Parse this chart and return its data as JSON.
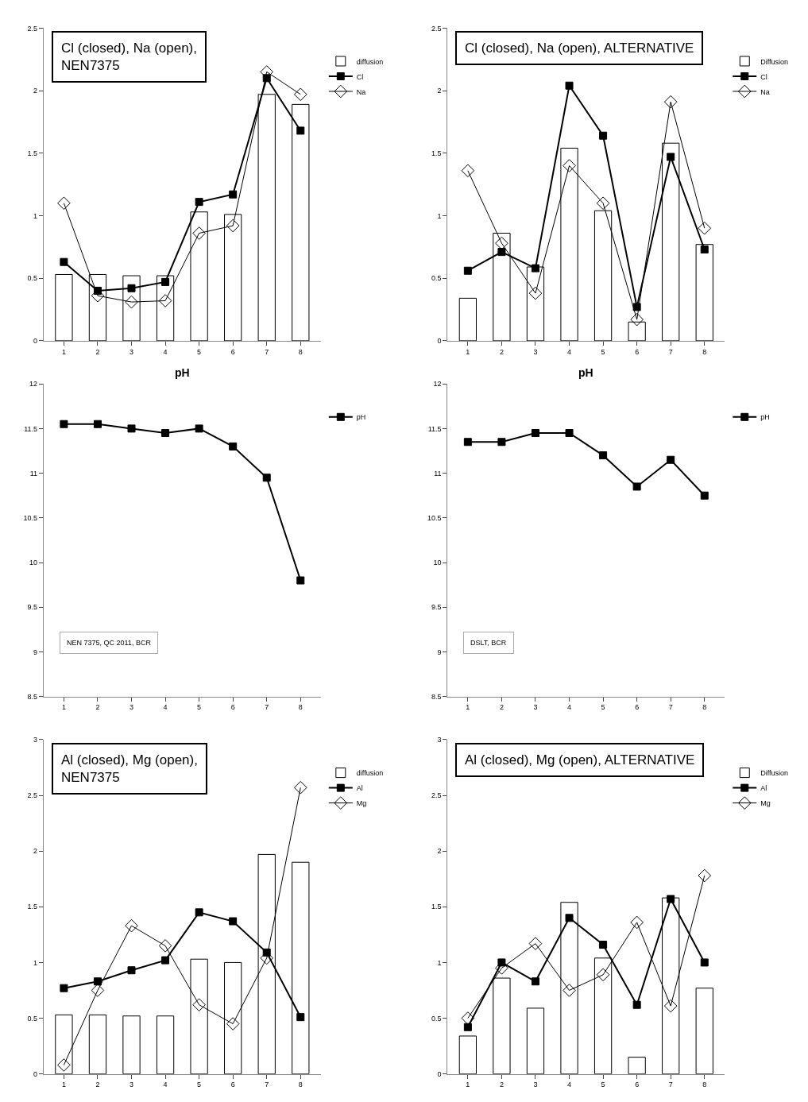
{
  "chart_data": [
    {
      "type": "bar",
      "categories": [
        "1",
        "2",
        "3",
        "4",
        "5",
        "6",
        "7",
        "8"
      ],
      "ylim": [
        0,
        2.5
      ],
      "yticks": [
        0,
        0.5,
        1,
        1.5,
        2,
        2.5
      ],
      "legend": "right",
      "annotations": [
        "Cl (closed), Na (open), NEN7375"
      ],
      "series": [
        {
          "name": "diffusion",
          "type": "bar",
          "color": "#ffffff",
          "values": [
            0.53,
            0.53,
            0.52,
            0.52,
            1.03,
            1.01,
            1.97,
            1.89
          ]
        },
        {
          "name": "Cl",
          "type": "line",
          "marker": "square",
          "color": "#000000",
          "values": [
            0.63,
            0.4,
            0.42,
            0.47,
            1.11,
            1.17,
            2.1,
            1.68
          ]
        },
        {
          "name": "Na",
          "type": "line",
          "marker": "diamond",
          "color": "#000000",
          "values": [
            1.1,
            0.36,
            0.31,
            0.32,
            0.86,
            0.92,
            2.15,
            1.97
          ]
        }
      ]
    },
    {
      "type": "bar",
      "categories": [
        "1",
        "2",
        "3",
        "4",
        "5",
        "6",
        "7",
        "8"
      ],
      "ylim": [
        0,
        2.5
      ],
      "yticks": [
        0,
        0.5,
        1,
        1.5,
        2,
        2.5
      ],
      "legend": "right",
      "annotations": [
        "Cl (closed), Na (open), ALTERNATIVE"
      ],
      "series": [
        {
          "name": "Diffusion",
          "type": "bar",
          "color": "#ffffff",
          "values": [
            0.34,
            0.86,
            0.59,
            1.54,
            1.04,
            0.15,
            1.58,
            0.77
          ]
        },
        {
          "name": "Cl",
          "type": "line",
          "marker": "square",
          "color": "#000000",
          "values": [
            0.56,
            0.71,
            0.58,
            2.04,
            1.64,
            0.27,
            1.47,
            0.73
          ]
        },
        {
          "name": "Na",
          "type": "line",
          "marker": "diamond",
          "color": "#000000",
          "values": [
            1.36,
            0.78,
            0.38,
            1.4,
            1.1,
            0.17,
            1.91,
            0.9
          ]
        }
      ]
    },
    {
      "type": "line",
      "title": "pH",
      "categories": [
        "1",
        "2",
        "3",
        "4",
        "5",
        "6",
        "7",
        "8"
      ],
      "ylim": [
        8.5,
        12
      ],
      "yticks": [
        8.5,
        9,
        9.5,
        10,
        10.5,
        11,
        11.5,
        12
      ],
      "legend": "top right",
      "marker": "square",
      "annotations": [
        "NEN 7375, QC 2011, BCR"
      ],
      "series": [
        {
          "name": "pH",
          "color": "#000000",
          "values": [
            11.55,
            11.55,
            11.5,
            11.45,
            11.5,
            11.3,
            10.95,
            9.8
          ]
        }
      ]
    },
    {
      "type": "line",
      "title": "pH",
      "categories": [
        "1",
        "2",
        "3",
        "4",
        "5",
        "6",
        "7",
        "8"
      ],
      "ylim": [
        8.5,
        12
      ],
      "yticks": [
        8.5,
        9,
        9.5,
        10,
        10.5,
        11,
        11.5,
        12
      ],
      "legend": "top right",
      "marker": "square",
      "annotations": [
        "DSLT, BCR"
      ],
      "series": [
        {
          "name": "pH",
          "color": "#000000",
          "values": [
            11.35,
            11.35,
            11.45,
            11.45,
            11.2,
            10.85,
            11.15,
            10.75
          ]
        }
      ]
    },
    {
      "type": "bar",
      "categories": [
        "1",
        "2",
        "3",
        "4",
        "5",
        "6",
        "7",
        "8"
      ],
      "ylim": [
        0,
        3
      ],
      "yticks": [
        0,
        0.5,
        1,
        1.5,
        2,
        2.5,
        3
      ],
      "legend": "right",
      "annotations": [
        "Al (closed), Mg (open), NEN7375"
      ],
      "series": [
        {
          "name": "diffusion",
          "type": "bar",
          "color": "#ffffff",
          "values": [
            0.53,
            0.53,
            0.52,
            0.52,
            1.03,
            1.0,
            1.97,
            1.9
          ]
        },
        {
          "name": "Al",
          "type": "line",
          "marker": "square",
          "color": "#000000",
          "values": [
            0.77,
            0.83,
            0.93,
            1.02,
            1.45,
            1.37,
            1.09,
            0.51
          ]
        },
        {
          "name": "Mg",
          "type": "line",
          "marker": "diamond",
          "color": "#000000",
          "values": [
            0.08,
            0.75,
            1.33,
            1.15,
            0.62,
            0.45,
            1.04,
            2.57
          ]
        }
      ]
    },
    {
      "type": "bar",
      "categories": [
        "1",
        "2",
        "3",
        "4",
        "5",
        "6",
        "7",
        "8"
      ],
      "ylim": [
        0,
        3
      ],
      "yticks": [
        0,
        0.5,
        1,
        1.5,
        2,
        2.5,
        3
      ],
      "legend": "right",
      "annotations": [
        "Al (closed), Mg (open), ALTERNATIVE"
      ],
      "series": [
        {
          "name": "Diffusion",
          "type": "bar",
          "color": "#ffffff",
          "values": [
            0.34,
            0.86,
            0.59,
            1.54,
            1.04,
            0.15,
            1.58,
            0.77
          ]
        },
        {
          "name": "Al",
          "type": "line",
          "marker": "square",
          "color": "#000000",
          "values": [
            0.42,
            1.0,
            0.83,
            1.4,
            1.16,
            0.62,
            1.57,
            1.0
          ]
        },
        {
          "name": "Mg",
          "type": "line",
          "marker": "diamond",
          "color": "#000000",
          "values": [
            0.5,
            0.95,
            1.17,
            0.75,
            0.89,
            1.36,
            0.61,
            1.78
          ]
        }
      ]
    }
  ]
}
